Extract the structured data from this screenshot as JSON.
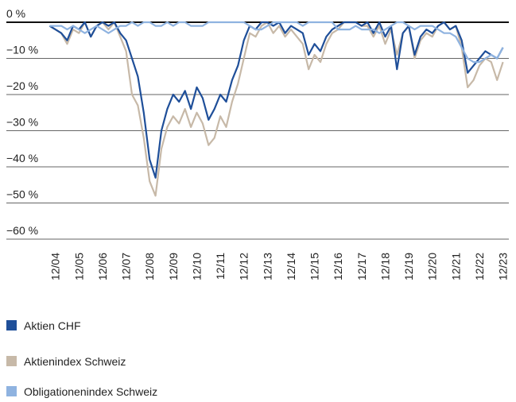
{
  "chart_data": {
    "type": "line",
    "x": [
      "2004-09",
      "2004-12",
      "2005-03",
      "2005-06",
      "2005-09",
      "2005-12",
      "2006-03",
      "2006-06",
      "2006-09",
      "2006-12",
      "2007-03",
      "2007-06",
      "2007-09",
      "2007-12",
      "2008-03",
      "2008-06",
      "2008-09",
      "2008-12",
      "2009-03",
      "2009-06",
      "2009-09",
      "2009-12",
      "2010-03",
      "2010-06",
      "2010-09",
      "2010-12",
      "2011-03",
      "2011-06",
      "2011-09",
      "2011-12",
      "2012-03",
      "2012-06",
      "2012-09",
      "2012-12",
      "2013-03",
      "2013-06",
      "2013-09",
      "2013-12",
      "2014-03",
      "2014-06",
      "2014-09",
      "2014-12",
      "2015-03",
      "2015-06",
      "2015-09",
      "2015-12",
      "2016-03",
      "2016-06",
      "2016-09",
      "2016-12",
      "2017-03",
      "2017-06",
      "2017-09",
      "2017-12",
      "2018-03",
      "2018-06",
      "2018-09",
      "2018-12",
      "2019-03",
      "2019-06",
      "2019-09",
      "2019-12",
      "2020-03",
      "2020-06",
      "2020-09",
      "2020-12",
      "2021-03",
      "2021-06",
      "2021-09",
      "2021-12",
      "2022-03",
      "2022-06",
      "2022-09",
      "2022-12",
      "2023-03",
      "2023-06",
      "2023-09",
      "2023-12"
    ],
    "series": [
      {
        "name": "Aktien CHF",
        "color": "#1f4f99",
        "values": [
          -1,
          -2,
          -3,
          -5,
          -1,
          -2,
          0,
          -4,
          -1,
          0,
          -1,
          0,
          -3,
          -5,
          -10,
          -15,
          -25,
          -38,
          -43,
          -30,
          -24,
          -20,
          -22,
          -19,
          -24,
          -18,
          -21,
          -27,
          -24,
          -20,
          -22,
          -16,
          -12,
          -5,
          -1,
          -2,
          0,
          0,
          -1,
          0,
          -3,
          -1,
          -2,
          -3,
          -9,
          -6,
          -8,
          -4,
          -2,
          -1,
          0,
          0,
          0,
          -1,
          0,
          -3,
          0,
          -4,
          -1,
          -13,
          -3,
          -1,
          -9,
          -4,
          -2,
          -3,
          -1,
          0,
          -2,
          -1,
          -5,
          -14,
          -12,
          -10,
          -8,
          -9,
          -10,
          -7
        ]
      },
      {
        "name": "Aktienindex Schweiz",
        "color": "#c7b9a8",
        "values": [
          -1,
          -2,
          -3,
          -6,
          -2,
          -3,
          0,
          -4,
          -1,
          0,
          -2,
          0,
          -4,
          -8,
          -20,
          -23,
          -32,
          -44,
          -48,
          -35,
          -29,
          -26,
          -28,
          -24,
          -29,
          -25,
          -28,
          -34,
          -32,
          -26,
          -29,
          -22,
          -17,
          -10,
          -3,
          -4,
          -1,
          0,
          -3,
          -1,
          -4,
          -2,
          -4,
          -6,
          -13,
          -9,
          -11,
          -6,
          -3,
          -2,
          0,
          0,
          0,
          -1,
          -1,
          -4,
          -1,
          -6,
          -2,
          -9,
          -3,
          -1,
          -10,
          -5,
          -3,
          -4,
          -1,
          0,
          -2,
          -1,
          -7,
          -18,
          -16,
          -12,
          -10,
          -11,
          -16,
          -11
        ]
      },
      {
        "name": "Obligationenindex Schweiz",
        "color": "#8fb3e0",
        "values": [
          -1,
          -1,
          -1,
          -2,
          -1,
          -2,
          -3,
          -2,
          -1,
          -2,
          -3,
          -2,
          -1,
          -1,
          0,
          -1,
          0,
          0,
          -1,
          -1,
          0,
          -1,
          0,
          0,
          -1,
          -1,
          -1,
          0,
          0,
          0,
          0,
          0,
          0,
          0,
          -1,
          -2,
          -2,
          -1,
          0,
          0,
          0,
          0,
          0,
          -1,
          0,
          0,
          0,
          0,
          0,
          -2,
          -2,
          -2,
          -1,
          -2,
          -2,
          -2,
          -3,
          -2,
          -1,
          0,
          0,
          -1,
          -2,
          -1,
          -1,
          -1,
          -2,
          -3,
          -3,
          -4,
          -7,
          -10,
          -11,
          -11,
          -10,
          -9,
          -10,
          -7
        ]
      }
    ],
    "xlim": [
      "2002-11",
      "2024-03"
    ],
    "xticks": [
      {
        "value": "2004-12",
        "label": "12/04"
      },
      {
        "value": "2005-12",
        "label": "12/05"
      },
      {
        "value": "2006-12",
        "label": "12/06"
      },
      {
        "value": "2007-12",
        "label": "12/07"
      },
      {
        "value": "2008-12",
        "label": "12/08"
      },
      {
        "value": "2009-12",
        "label": "12/09"
      },
      {
        "value": "2010-12",
        "label": "12/10"
      },
      {
        "value": "2011-12",
        "label": "12/11"
      },
      {
        "value": "2012-12",
        "label": "12/12"
      },
      {
        "value": "2013-12",
        "label": "12/13"
      },
      {
        "value": "2014-12",
        "label": "12/14"
      },
      {
        "value": "2015-12",
        "label": "12/15"
      },
      {
        "value": "2016-12",
        "label": "12/16"
      },
      {
        "value": "2017-12",
        "label": "12/17"
      },
      {
        "value": "2018-12",
        "label": "12/18"
      },
      {
        "value": "2019-12",
        "label": "12/19"
      },
      {
        "value": "2020-12",
        "label": "12/20"
      },
      {
        "value": "2021-12",
        "label": "12/21"
      },
      {
        "value": "2022-12",
        "label": "12/22"
      },
      {
        "value": "2023-12",
        "label": "12/23"
      }
    ],
    "ylim": [
      -60,
      0
    ],
    "yticks": [
      {
        "value": 0,
        "label": "0 %"
      },
      {
        "value": -10,
        "label": "−10 %"
      },
      {
        "value": -20,
        "label": "−20 %"
      },
      {
        "value": -30,
        "label": "−30 %"
      },
      {
        "value": -40,
        "label": "−40 %"
      },
      {
        "value": -50,
        "label": "−50 %"
      },
      {
        "value": -60,
        "label": "−60 %"
      }
    ],
    "grid": true
  }
}
